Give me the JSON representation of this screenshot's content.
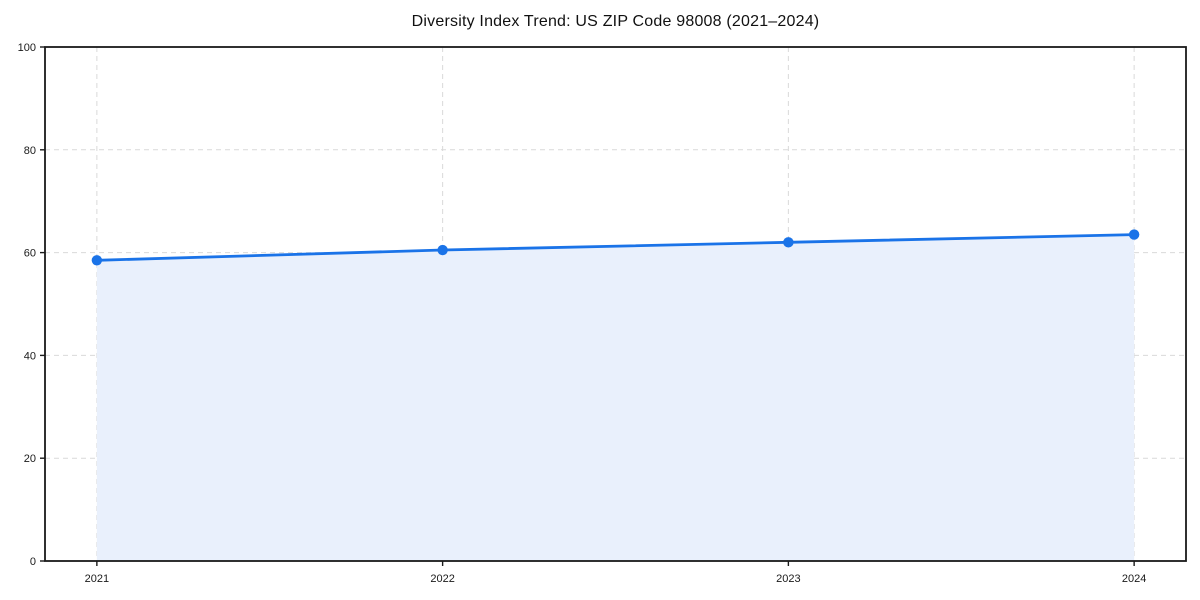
{
  "chart_data": {
    "type": "line",
    "title": "Diversity Index Trend: US ZIP Code 98008 (2021–2024)",
    "x": [
      2021,
      2022,
      2023,
      2024
    ],
    "x_labels": [
      "2021",
      "2022",
      "2023",
      "2024"
    ],
    "series": [
      {
        "name": "Diversity Index",
        "values": [
          58.5,
          60.5,
          62.0,
          63.5
        ]
      }
    ],
    "xlim": [
      2020.85,
      2024.15
    ],
    "ylim": [
      0,
      100
    ],
    "yticks": [
      0,
      20,
      40,
      60,
      80,
      100
    ],
    "ytick_labels": [
      "0",
      "20",
      "40",
      "60",
      "80",
      "100"
    ],
    "grid": "dashed-both-axes",
    "legend": "none",
    "area_fill": true,
    "colors": {
      "line": "#1a73e8",
      "marker": "#1a73e8",
      "fill": "#e9f0fc",
      "grid": "#d9d9d9",
      "spine": "#1a1a1a",
      "tick": "#1a1a1a",
      "tick_label": "#1a1a1a",
      "title": "#111111",
      "background": "#ffffff"
    }
  }
}
